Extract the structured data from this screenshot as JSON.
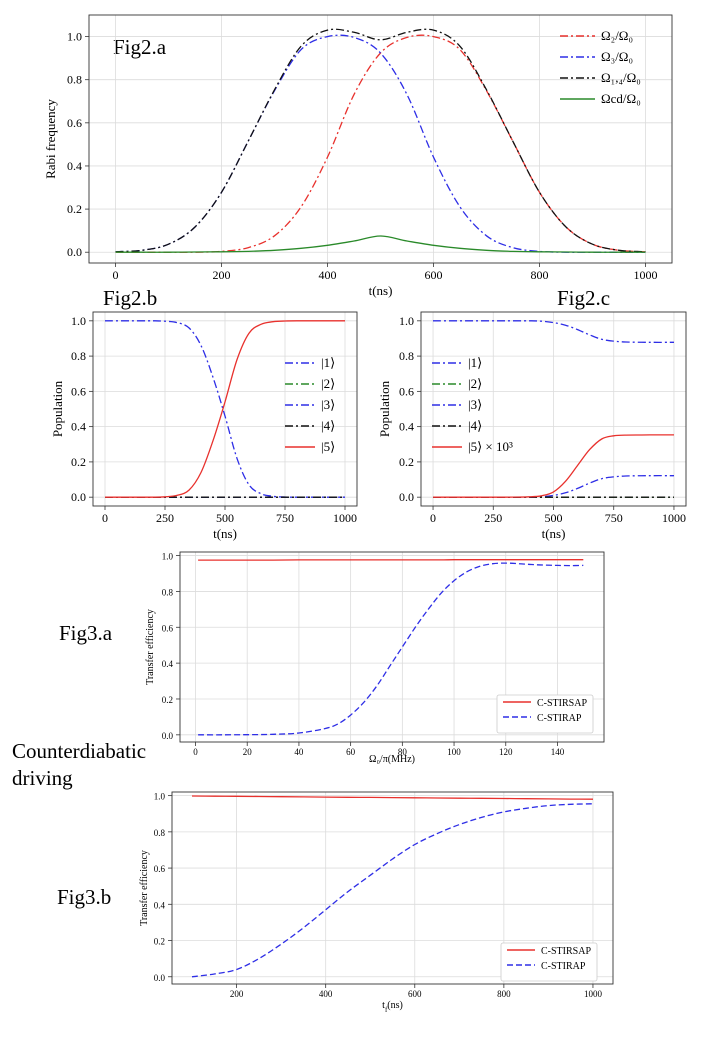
{
  "labels": {
    "fig2a": "Fig2.a",
    "fig2b": "Fig2.b",
    "fig2c": "Fig2.c",
    "fig3a": "Fig3.a",
    "fig3b": "Fig3.b",
    "cd_line1": "Counterdiabatic",
    "cd_line2": "driving"
  },
  "chart_data": [
    {
      "id": "fig2a",
      "type": "line",
      "xlabel": "t(ns)",
      "ylabel": "Rabi frequency",
      "xlim": [
        -50,
        1050
      ],
      "ylim": [
        -0.05,
        1.1
      ],
      "xticks": [
        0,
        200,
        400,
        600,
        800,
        1000
      ],
      "yticks": [
        0.0,
        0.2,
        0.4,
        0.6,
        0.8,
        1.0
      ],
      "grid": true,
      "legend_position": "top-right",
      "x": [
        0,
        50,
        100,
        150,
        200,
        250,
        300,
        350,
        400,
        450,
        500,
        550,
        600,
        650,
        700,
        750,
        800,
        850,
        900,
        950,
        1000
      ],
      "series": [
        {
          "name": "Ω₂/Ω₀",
          "color": "#e8312d",
          "dash": "dashdot",
          "values": [
            0.0,
            0.0,
            0.0,
            0.0,
            0.004,
            0.021,
            0.076,
            0.21,
            0.441,
            0.731,
            0.924,
            0.996,
            1.0,
            0.939,
            0.749,
            0.513,
            0.278,
            0.117,
            0.037,
            0.009,
            0.002
          ]
        },
        {
          "name": "Ω₃/Ω₀",
          "color": "#2e2ee6",
          "dash": "dashdot",
          "values": [
            0.002,
            0.009,
            0.037,
            0.117,
            0.278,
            0.513,
            0.749,
            0.939,
            1.0,
            0.996,
            0.924,
            0.731,
            0.441,
            0.21,
            0.076,
            0.021,
            0.004,
            0.0,
            0.0,
            0.0,
            0.0
          ]
        },
        {
          "name": "Ω₁,₄/Ω₀",
          "color": "#111111",
          "dash": "dashdot",
          "values": [
            0.002,
            0.009,
            0.037,
            0.117,
            0.278,
            0.513,
            0.753,
            0.955,
            1.03,
            1.02,
            0.985,
            1.02,
            1.03,
            0.955,
            0.753,
            0.513,
            0.278,
            0.117,
            0.037,
            0.009,
            0.002
          ]
        },
        {
          "name": "Ωcd/Ω₀",
          "color": "#2a8a2a",
          "dash": "solid",
          "values": [
            0.0,
            0.0,
            0.0,
            0.001,
            0.002,
            0.004,
            0.009,
            0.018,
            0.032,
            0.052,
            0.075,
            0.052,
            0.032,
            0.018,
            0.009,
            0.004,
            0.002,
            0.001,
            0.0,
            0.0,
            0.0
          ]
        }
      ]
    },
    {
      "id": "fig2b",
      "type": "line",
      "xlabel": "t(ns)",
      "ylabel": "Population",
      "xlim": [
        -50,
        1050
      ],
      "ylim": [
        -0.05,
        1.05
      ],
      "xticks": [
        0,
        250,
        500,
        750,
        1000
      ],
      "yticks": [
        0.0,
        0.2,
        0.4,
        0.6,
        0.8,
        1.0
      ],
      "grid": true,
      "legend_position": "center-right",
      "x": [
        0,
        100,
        200,
        250,
        300,
        350,
        400,
        450,
        500,
        550,
        600,
        650,
        700,
        750,
        800,
        900,
        1000
      ],
      "series": [
        {
          "name": "|1⟩",
          "color": "#2e2ee6",
          "dash": "dashdot",
          "values": [
            1.0,
            1.0,
            1.0,
            0.998,
            0.99,
            0.96,
            0.86,
            0.68,
            0.46,
            0.22,
            0.07,
            0.02,
            0.005,
            0.001,
            0.0,
            0.0,
            0.0
          ]
        },
        {
          "name": "|2⟩",
          "color": "#2a8a2a",
          "dash": "dashdot",
          "values": [
            0.0,
            0.0,
            0.0,
            0.0,
            0.0,
            0.0,
            0.0,
            0.0,
            0.0,
            0.0,
            0.0,
            0.0,
            0.0,
            0.0,
            0.0,
            0.0,
            0.0
          ]
        },
        {
          "name": "|3⟩",
          "color": "#2e2ee6",
          "dash": "dashdot",
          "values": [
            0.0,
            0.0,
            0.0,
            0.0,
            0.0,
            0.0,
            0.0,
            0.0,
            0.0,
            0.0,
            0.0,
            0.0,
            0.0,
            0.0,
            0.0,
            0.0,
            0.0
          ]
        },
        {
          "name": "|4⟩",
          "color": "#111111",
          "dash": "dashdot",
          "values": [
            0.0,
            0.0,
            0.0,
            0.0,
            0.0,
            0.0,
            0.0,
            0.0,
            0.0,
            0.0,
            0.0,
            0.0,
            0.0,
            0.0,
            0.0,
            0.0,
            0.0
          ]
        },
        {
          "name": "|5⟩",
          "color": "#e8312d",
          "dash": "solid",
          "values": [
            0.0,
            0.0,
            0.0,
            0.002,
            0.01,
            0.04,
            0.14,
            0.32,
            0.54,
            0.78,
            0.93,
            0.98,
            0.995,
            0.999,
            1.0,
            1.0,
            1.0
          ]
        }
      ]
    },
    {
      "id": "fig2c",
      "type": "line",
      "xlabel": "t(ns)",
      "ylabel": "Population",
      "xlim": [
        -50,
        1050
      ],
      "ylim": [
        -0.05,
        1.05
      ],
      "xticks": [
        0,
        250,
        500,
        750,
        1000
      ],
      "yticks": [
        0.0,
        0.2,
        0.4,
        0.6,
        0.8,
        1.0
      ],
      "grid": true,
      "legend_position": "center-left",
      "x": [
        0,
        100,
        200,
        300,
        400,
        450,
        500,
        550,
        600,
        650,
        700,
        750,
        800,
        900,
        1000
      ],
      "series": [
        {
          "name": "|1⟩",
          "color": "#2e2ee6",
          "dash": "dashdot",
          "values": [
            1.0,
            1.0,
            1.0,
            1.0,
            1.0,
            0.998,
            0.99,
            0.975,
            0.95,
            0.92,
            0.895,
            0.885,
            0.88,
            0.878,
            0.878
          ]
        },
        {
          "name": "|2⟩",
          "color": "#2a8a2a",
          "dash": "dashdot",
          "values": [
            0.0,
            0.0,
            0.0,
            0.0,
            0.0,
            0.0,
            0.0,
            0.0,
            0.0,
            0.0,
            0.0,
            0.0,
            0.0,
            0.0,
            0.0
          ]
        },
        {
          "name": "|3⟩",
          "color": "#2e2ee6",
          "dash": "dashdot",
          "values": [
            0.0,
            0.0,
            0.0,
            0.0,
            0.0,
            0.002,
            0.01,
            0.025,
            0.05,
            0.08,
            0.105,
            0.115,
            0.12,
            0.122,
            0.122
          ]
        },
        {
          "name": "|4⟩",
          "color": "#111111",
          "dash": "dashdot",
          "values": [
            0.0,
            0.0,
            0.0,
            0.0,
            0.0,
            0.0,
            0.0,
            0.0,
            0.0,
            0.0,
            0.0,
            0.0,
            0.0,
            0.0,
            0.0
          ]
        },
        {
          "name": "|5⟩ × 10³",
          "color": "#e8312d",
          "dash": "solid",
          "values": [
            0.0,
            0.0,
            0.0,
            0.0,
            0.002,
            0.008,
            0.03,
            0.09,
            0.18,
            0.27,
            0.33,
            0.348,
            0.352,
            0.353,
            0.353
          ]
        }
      ]
    },
    {
      "id": "fig3a",
      "type": "line",
      "xlabel": "Ω₀/π(MHz)",
      "ylabel": "Transfer efficiency",
      "xlim": [
        -6,
        158
      ],
      "ylim": [
        -0.04,
        1.02
      ],
      "xticks": [
        0,
        20,
        40,
        60,
        80,
        100,
        120,
        140
      ],
      "yticks": [
        0.0,
        0.2,
        0.4,
        0.6,
        0.8,
        1.0
      ],
      "grid": true,
      "legend_position": "bottom-right",
      "x": [
        1,
        10,
        20,
        30,
        40,
        50,
        55,
        60,
        65,
        70,
        75,
        80,
        85,
        90,
        95,
        100,
        105,
        110,
        115,
        120,
        125,
        130,
        135,
        140,
        145,
        150
      ],
      "series": [
        {
          "name": "C-STIRSAP",
          "color": "#e8312d",
          "dash": "solid",
          "values": [
            0.975,
            0.975,
            0.975,
            0.975,
            0.976,
            0.976,
            0.976,
            0.976,
            0.976,
            0.976,
            0.976,
            0.976,
            0.976,
            0.976,
            0.976,
            0.977,
            0.977,
            0.977,
            0.977,
            0.977,
            0.977,
            0.977,
            0.977,
            0.977,
            0.977,
            0.977
          ]
        },
        {
          "name": "C-STIRAP",
          "color": "#2e2ee6",
          "dash": "dashed",
          "values": [
            0.0,
            0.0,
            0.001,
            0.003,
            0.01,
            0.035,
            0.06,
            0.11,
            0.18,
            0.27,
            0.38,
            0.49,
            0.6,
            0.7,
            0.79,
            0.86,
            0.91,
            0.94,
            0.955,
            0.958,
            0.955,
            0.95,
            0.947,
            0.945,
            0.944,
            0.945
          ]
        }
      ]
    },
    {
      "id": "fig3b",
      "type": "line",
      "xlabel": "t_f(ns)",
      "ylabel": "Transfer efficiency",
      "xlim": [
        55,
        1045
      ],
      "ylim": [
        -0.04,
        1.02
      ],
      "xticks": [
        200,
        400,
        600,
        800,
        1000
      ],
      "yticks": [
        0.0,
        0.2,
        0.4,
        0.6,
        0.8,
        1.0
      ],
      "grid": true,
      "legend_position": "bottom-right",
      "x": [
        100,
        150,
        200,
        250,
        300,
        350,
        400,
        450,
        500,
        550,
        600,
        650,
        700,
        750,
        800,
        850,
        900,
        950,
        1000
      ],
      "series": [
        {
          "name": "C-STIRSAP",
          "color": "#e8312d",
          "dash": "solid",
          "values": [
            0.998,
            0.997,
            0.996,
            0.995,
            0.994,
            0.993,
            0.992,
            0.991,
            0.99,
            0.989,
            0.988,
            0.987,
            0.986,
            0.985,
            0.984,
            0.983,
            0.982,
            0.981,
            0.98
          ]
        },
        {
          "name": "C-STIRAP",
          "color": "#2e2ee6",
          "dash": "dashed",
          "values": [
            0.0,
            0.015,
            0.04,
            0.1,
            0.18,
            0.27,
            0.37,
            0.47,
            0.56,
            0.65,
            0.73,
            0.79,
            0.84,
            0.88,
            0.91,
            0.93,
            0.945,
            0.952,
            0.955
          ]
        }
      ]
    }
  ]
}
